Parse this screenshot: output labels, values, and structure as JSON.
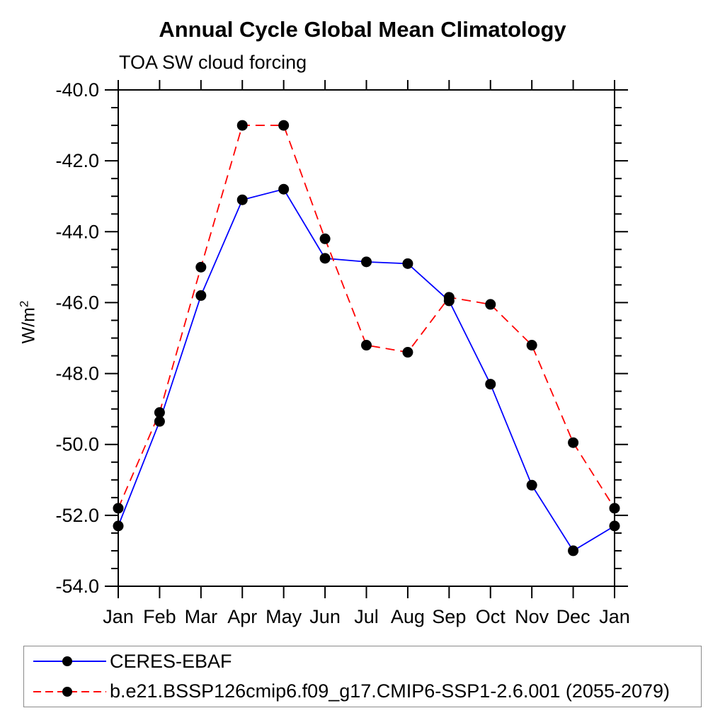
{
  "chart_data": {
    "type": "line",
    "title": "Annual Cycle Global Mean Climatology",
    "subtitle": "TOA SW cloud forcing",
    "ylabel_base": "W/m",
    "ylabel_sup": "2",
    "xlabel": "",
    "categories": [
      "Jan",
      "Feb",
      "Mar",
      "Apr",
      "May",
      "Jun",
      "Jul",
      "Aug",
      "Sep",
      "Oct",
      "Nov",
      "Dec",
      "Jan"
    ],
    "series": [
      {
        "name": "CERES-EBAF",
        "line_style": "solid",
        "line_color": "#0000ff",
        "marker": "filled-circle",
        "marker_color": "#000000",
        "values": [
          -52.3,
          -49.35,
          -45.8,
          -43.1,
          -42.8,
          -44.75,
          -44.85,
          -44.9,
          -45.95,
          -48.3,
          -51.15,
          -53.0,
          -52.3
        ]
      },
      {
        "name": "b.e21.BSSP126cmip6.f09_g17.CMIP6-SSP1-2.6.001 (2055-2079)",
        "line_style": "dashed",
        "line_color": "#ff0000",
        "marker": "filled-circle",
        "marker_color": "#000000",
        "values": [
          -51.8,
          -49.1,
          -45.0,
          -41.0,
          -41.0,
          -44.2,
          -47.2,
          -47.4,
          -45.85,
          -46.05,
          -47.2,
          -49.95,
          -51.8
        ]
      }
    ],
    "ylim": [
      -54.0,
      -40.0
    ],
    "ytick_values": [
      -40,
      -42,
      -44,
      -46,
      -48,
      -50,
      -52,
      -54
    ],
    "ytick_labels": [
      "-40.0",
      "-42.0",
      "-44.0",
      "-46.0",
      "-48.0",
      "-50.0",
      "-52.0",
      "-54.0"
    ],
    "yminor_step": 0.5,
    "grid": false,
    "frame": true,
    "axis_color": "#000000",
    "legend_position": "bottom-left"
  }
}
